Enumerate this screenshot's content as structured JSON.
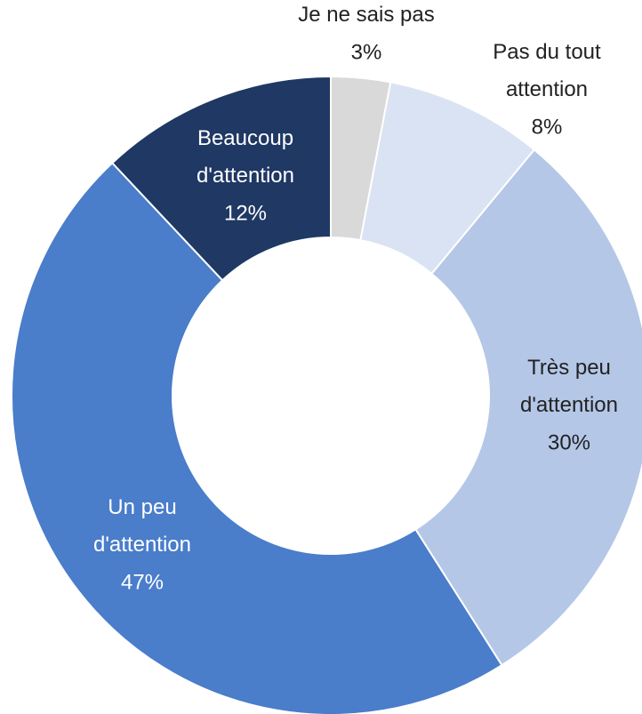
{
  "chart_data": {
    "type": "donut",
    "categories": [
      "Je ne sais pas",
      "Pas du tout\nattention",
      "Très peu\nd'attention",
      "Un peu\nd'attention",
      "Beaucoup\nd'attention"
    ],
    "values": [
      3,
      8,
      30,
      47,
      12
    ],
    "value_labels": [
      "3%",
      "8%",
      "30%",
      "47%",
      "12%"
    ],
    "colors": [
      "#d9d9d9",
      "#dae3f3",
      "#b4c7e7",
      "#4a7dca",
      "#1f3864"
    ]
  }
}
